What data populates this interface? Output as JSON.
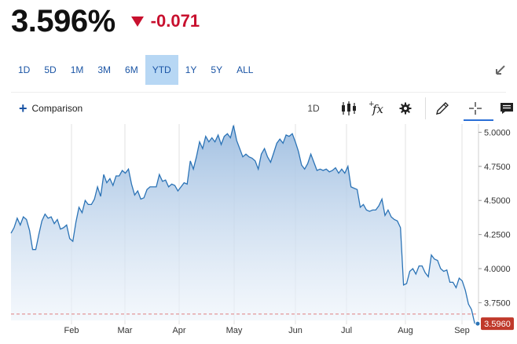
{
  "quote": {
    "price": "3.596%",
    "change": "-0.071",
    "direction_icon": "down-triangle-icon",
    "change_color": "#c8102e"
  },
  "ranges": {
    "items": [
      "1D",
      "5D",
      "1M",
      "3M",
      "6M",
      "YTD",
      "1Y",
      "5Y",
      "ALL"
    ],
    "active": "YTD"
  },
  "toolbar": {
    "comparison_label": "Comparison",
    "interval_label": "1D",
    "icons": [
      "candlestick-icon",
      "function-icon",
      "gear-icon",
      "pencil-icon",
      "crosshair-icon",
      "comment-icon",
      "expand-icon"
    ]
  },
  "colors": {
    "accent": "#1b55a5",
    "line": "#2b73b6",
    "area_top": "#9dbde0",
    "negative": "#c8102e",
    "active_range_bg": "#b7d7f4"
  },
  "chart_data": {
    "type": "area",
    "x_ticks": [
      "Feb",
      "Mar",
      "Apr",
      "May",
      "Jun",
      "Jul",
      "Aug",
      "Sep"
    ],
    "y_ticks": [
      "5.0000",
      "4.7500",
      "4.5000",
      "4.2500",
      "4.0000",
      "3.7500"
    ],
    "ylim": [
      3.62,
      5.06
    ],
    "grid": true,
    "last_value_label": "3.5960",
    "reference_value": 3.667,
    "series": [
      {
        "values": [
          4.26,
          4.3,
          4.37,
          4.32,
          4.38,
          4.36,
          4.28,
          4.14,
          4.14,
          4.25,
          4.35,
          4.4,
          4.37,
          4.38,
          4.33,
          4.36,
          4.29,
          4.3,
          4.32,
          4.22,
          4.2,
          4.34,
          4.45,
          4.41,
          4.5,
          4.47,
          4.47,
          4.51,
          4.6,
          4.53,
          4.69,
          4.63,
          4.66,
          4.61,
          4.68,
          4.68,
          4.72,
          4.7,
          4.73,
          4.62,
          4.54,
          4.57,
          4.51,
          4.52,
          4.58,
          4.6,
          4.6,
          4.6,
          4.69,
          4.64,
          4.65,
          4.6,
          4.62,
          4.61,
          4.57,
          4.6,
          4.63,
          4.62,
          4.79,
          4.73,
          4.82,
          4.93,
          4.88,
          4.97,
          4.93,
          4.96,
          4.93,
          4.98,
          4.91,
          4.97,
          4.99,
          4.96,
          5.05,
          4.94,
          4.88,
          4.82,
          4.84,
          4.82,
          4.81,
          4.79,
          4.73,
          4.84,
          4.88,
          4.82,
          4.78,
          4.85,
          4.92,
          4.95,
          4.92,
          4.98,
          4.97,
          4.99,
          4.93,
          4.86,
          4.76,
          4.73,
          4.77,
          4.84,
          4.78,
          4.72,
          4.73,
          4.72,
          4.73,
          4.71,
          4.72,
          4.74,
          4.7,
          4.73,
          4.7,
          4.75,
          4.6,
          4.59,
          4.58,
          4.45,
          4.47,
          4.43,
          4.42,
          4.43,
          4.43,
          4.46,
          4.51,
          4.39,
          4.43,
          4.38,
          4.36,
          4.35,
          4.3,
          3.88,
          3.89,
          3.98,
          4.0,
          3.96,
          4.02,
          4.02,
          3.97,
          3.94,
          4.1,
          4.07,
          4.06,
          4.0,
          3.98,
          3.99,
          3.9,
          3.9,
          3.86,
          3.93,
          3.91,
          3.84,
          3.74,
          3.7,
          3.6,
          3.596
        ]
      }
    ]
  }
}
